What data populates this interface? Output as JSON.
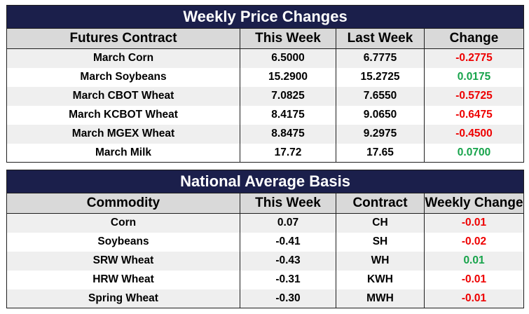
{
  "weekly": {
    "title": "Weekly Price Changes",
    "headers": [
      "Futures Contract",
      "This Week",
      "Last Week",
      "Change"
    ],
    "rows": [
      {
        "contract": "March Corn",
        "this_week": "6.5000",
        "last_week": "6.7775",
        "change": "-0.2775",
        "trend": "neg"
      },
      {
        "contract": "March Soybeans",
        "this_week": "15.2900",
        "last_week": "15.2725",
        "change": "0.0175",
        "trend": "pos"
      },
      {
        "contract": "March CBOT Wheat",
        "this_week": "7.0825",
        "last_week": "7.6550",
        "change": "-0.5725",
        "trend": "neg"
      },
      {
        "contract": "March KCBOT Wheat",
        "this_week": "8.4175",
        "last_week": "9.0650",
        "change": "-0.6475",
        "trend": "neg"
      },
      {
        "contract": "March MGEX Wheat",
        "this_week": "8.8475",
        "last_week": "9.2975",
        "change": "-0.4500",
        "trend": "neg"
      },
      {
        "contract": "March Milk",
        "this_week": "17.72",
        "last_week": "17.65",
        "change": "0.0700",
        "trend": "pos"
      }
    ]
  },
  "basis": {
    "title": "National Average Basis",
    "headers": [
      "Commodity",
      "This Week",
      "Contract",
      "Weekly Change"
    ],
    "rows": [
      {
        "commodity": "Corn",
        "this_week": "0.07",
        "contract": "CH",
        "change": "-0.01",
        "trend": "neg"
      },
      {
        "commodity": "Soybeans",
        "this_week": "-0.41",
        "contract": "SH",
        "change": "-0.02",
        "trend": "neg"
      },
      {
        "commodity": "SRW Wheat",
        "this_week": "-0.43",
        "contract": "WH",
        "change": "0.01",
        "trend": "pos"
      },
      {
        "commodity": "HRW Wheat",
        "this_week": "-0.31",
        "contract": "KWH",
        "change": "-0.01",
        "trend": "neg"
      },
      {
        "commodity": "Spring Wheat",
        "this_week": "-0.30",
        "contract": "MWH",
        "change": "-0.01",
        "trend": "neg"
      }
    ]
  },
  "colors": {
    "title_bar": "#1b1f4b",
    "header_bg": "#d9d9d9",
    "row_alt": "#efefef",
    "negative": "#ee0000",
    "positive": "#16a34a"
  }
}
